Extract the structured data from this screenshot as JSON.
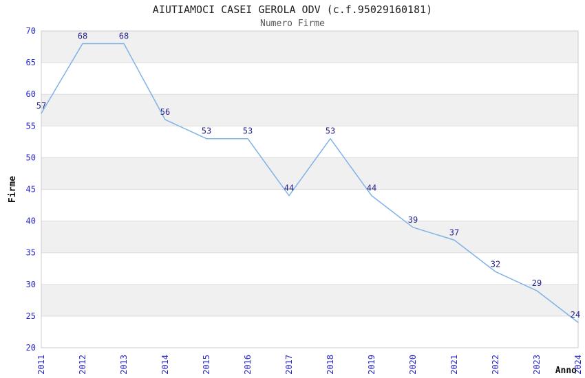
{
  "chart_data": {
    "type": "line",
    "title": "AIUTIAMOCI CASEI GEROLA ODV (c.f.95029160181)",
    "subtitle": "Numero Firme",
    "xlabel": "Anno",
    "ylabel": "Firme",
    "categories": [
      "2011",
      "2012",
      "2013",
      "2014",
      "2015",
      "2016",
      "2017",
      "2018",
      "2019",
      "2020",
      "2021",
      "2022",
      "2023",
      "2024"
    ],
    "values": [
      57,
      68,
      68,
      56,
      53,
      53,
      44,
      53,
      44,
      39,
      37,
      32,
      29,
      24
    ],
    "ylim": [
      20,
      70
    ],
    "ytick_step": 5,
    "yticks": [
      20,
      25,
      30,
      35,
      40,
      45,
      50,
      55,
      60,
      65,
      70
    ],
    "grid": true,
    "legend": "none",
    "band_fill_ranges": [
      [
        25,
        30
      ],
      [
        35,
        40
      ],
      [
        45,
        50
      ],
      [
        55,
        60
      ],
      [
        65,
        70
      ]
    ],
    "colors": {
      "line": "#7FB2E8",
      "data_label": "#26268C",
      "tick_label": "#2626CC",
      "band": "#F0F0F0",
      "grid": "#DDDDDD",
      "border": "#CCCCCC",
      "title": "#222222",
      "subtitle": "#555555",
      "axis_title": "#111111",
      "background": "#FFFFFF"
    }
  }
}
